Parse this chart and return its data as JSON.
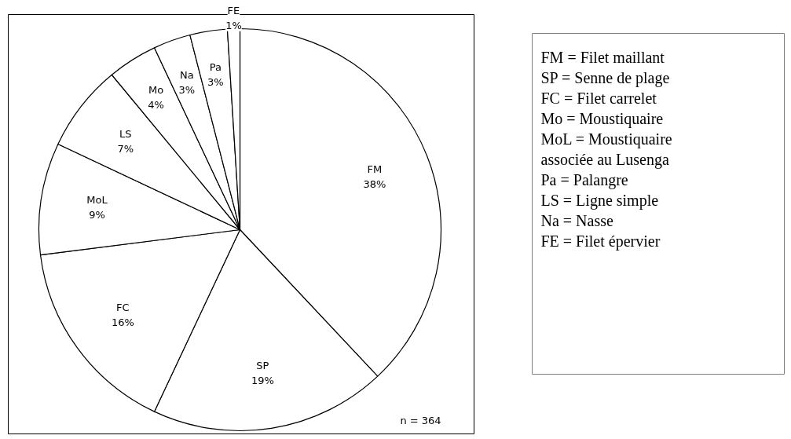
{
  "chart_data": {
    "type": "pie",
    "categories": [
      "FM",
      "SP",
      "FC",
      "MoL",
      "LS",
      "Mo",
      "Na",
      "Pa",
      "FE"
    ],
    "values": [
      38,
      19,
      16,
      9,
      7,
      4,
      3,
      3,
      1
    ],
    "value_labels": [
      "38%",
      "19%",
      "16%",
      "9%",
      "7%",
      "4%",
      "3%",
      "3%",
      "1%"
    ],
    "colors": [
      "#ffffff",
      "#ffffff",
      "#ffffff",
      "#ffffff",
      "#ffffff",
      "#ffffff",
      "#ffffff",
      "#ffffff",
      "#ffffff"
    ],
    "annotations": [
      "n = 364",
      "FM = Filet maillant",
      "SP = Senne de plage",
      "FC = Filet carrelet",
      "Mo = Moustiquaire",
      "MoL = Moustiquaire associée au Lusenga",
      "Pa = Palangre",
      "LS = Ligne simple",
      "Na = Nasse",
      "FE = Filet épervier"
    ]
  }
}
